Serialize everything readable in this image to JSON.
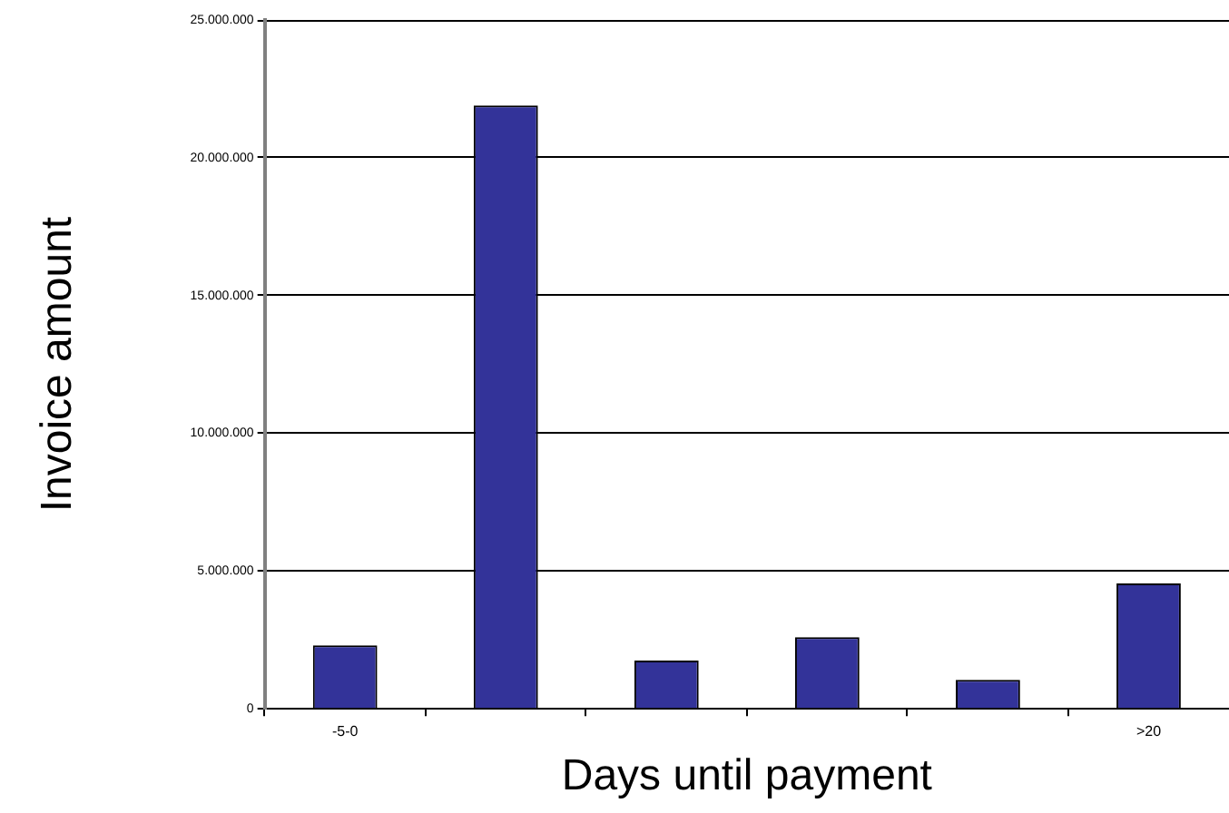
{
  "chart_data": {
    "type": "bar",
    "xlabel": "Days until payment",
    "ylabel": "Invoice amount",
    "categories": [
      "-5-0",
      null,
      null,
      null,
      null,
      ">20"
    ],
    "values": [
      2300000,
      21900000,
      1750000,
      2600000,
      1050000,
      4550000
    ],
    "color": "#333399",
    "ylim": [
      0,
      25000000
    ],
    "yticks": [
      0,
      {
        "value": 5000000,
        "label": "5.000.000"
      },
      {
        "value": 10000000,
        "label": "10.000.000"
      },
      {
        "value": 15000000,
        "label": "15.000.000"
      },
      {
        "value": 20000000,
        "label": "20.000.000"
      },
      {
        "value": 25000000,
        "label": "25.000.000"
      }
    ],
    "grid": "y"
  }
}
